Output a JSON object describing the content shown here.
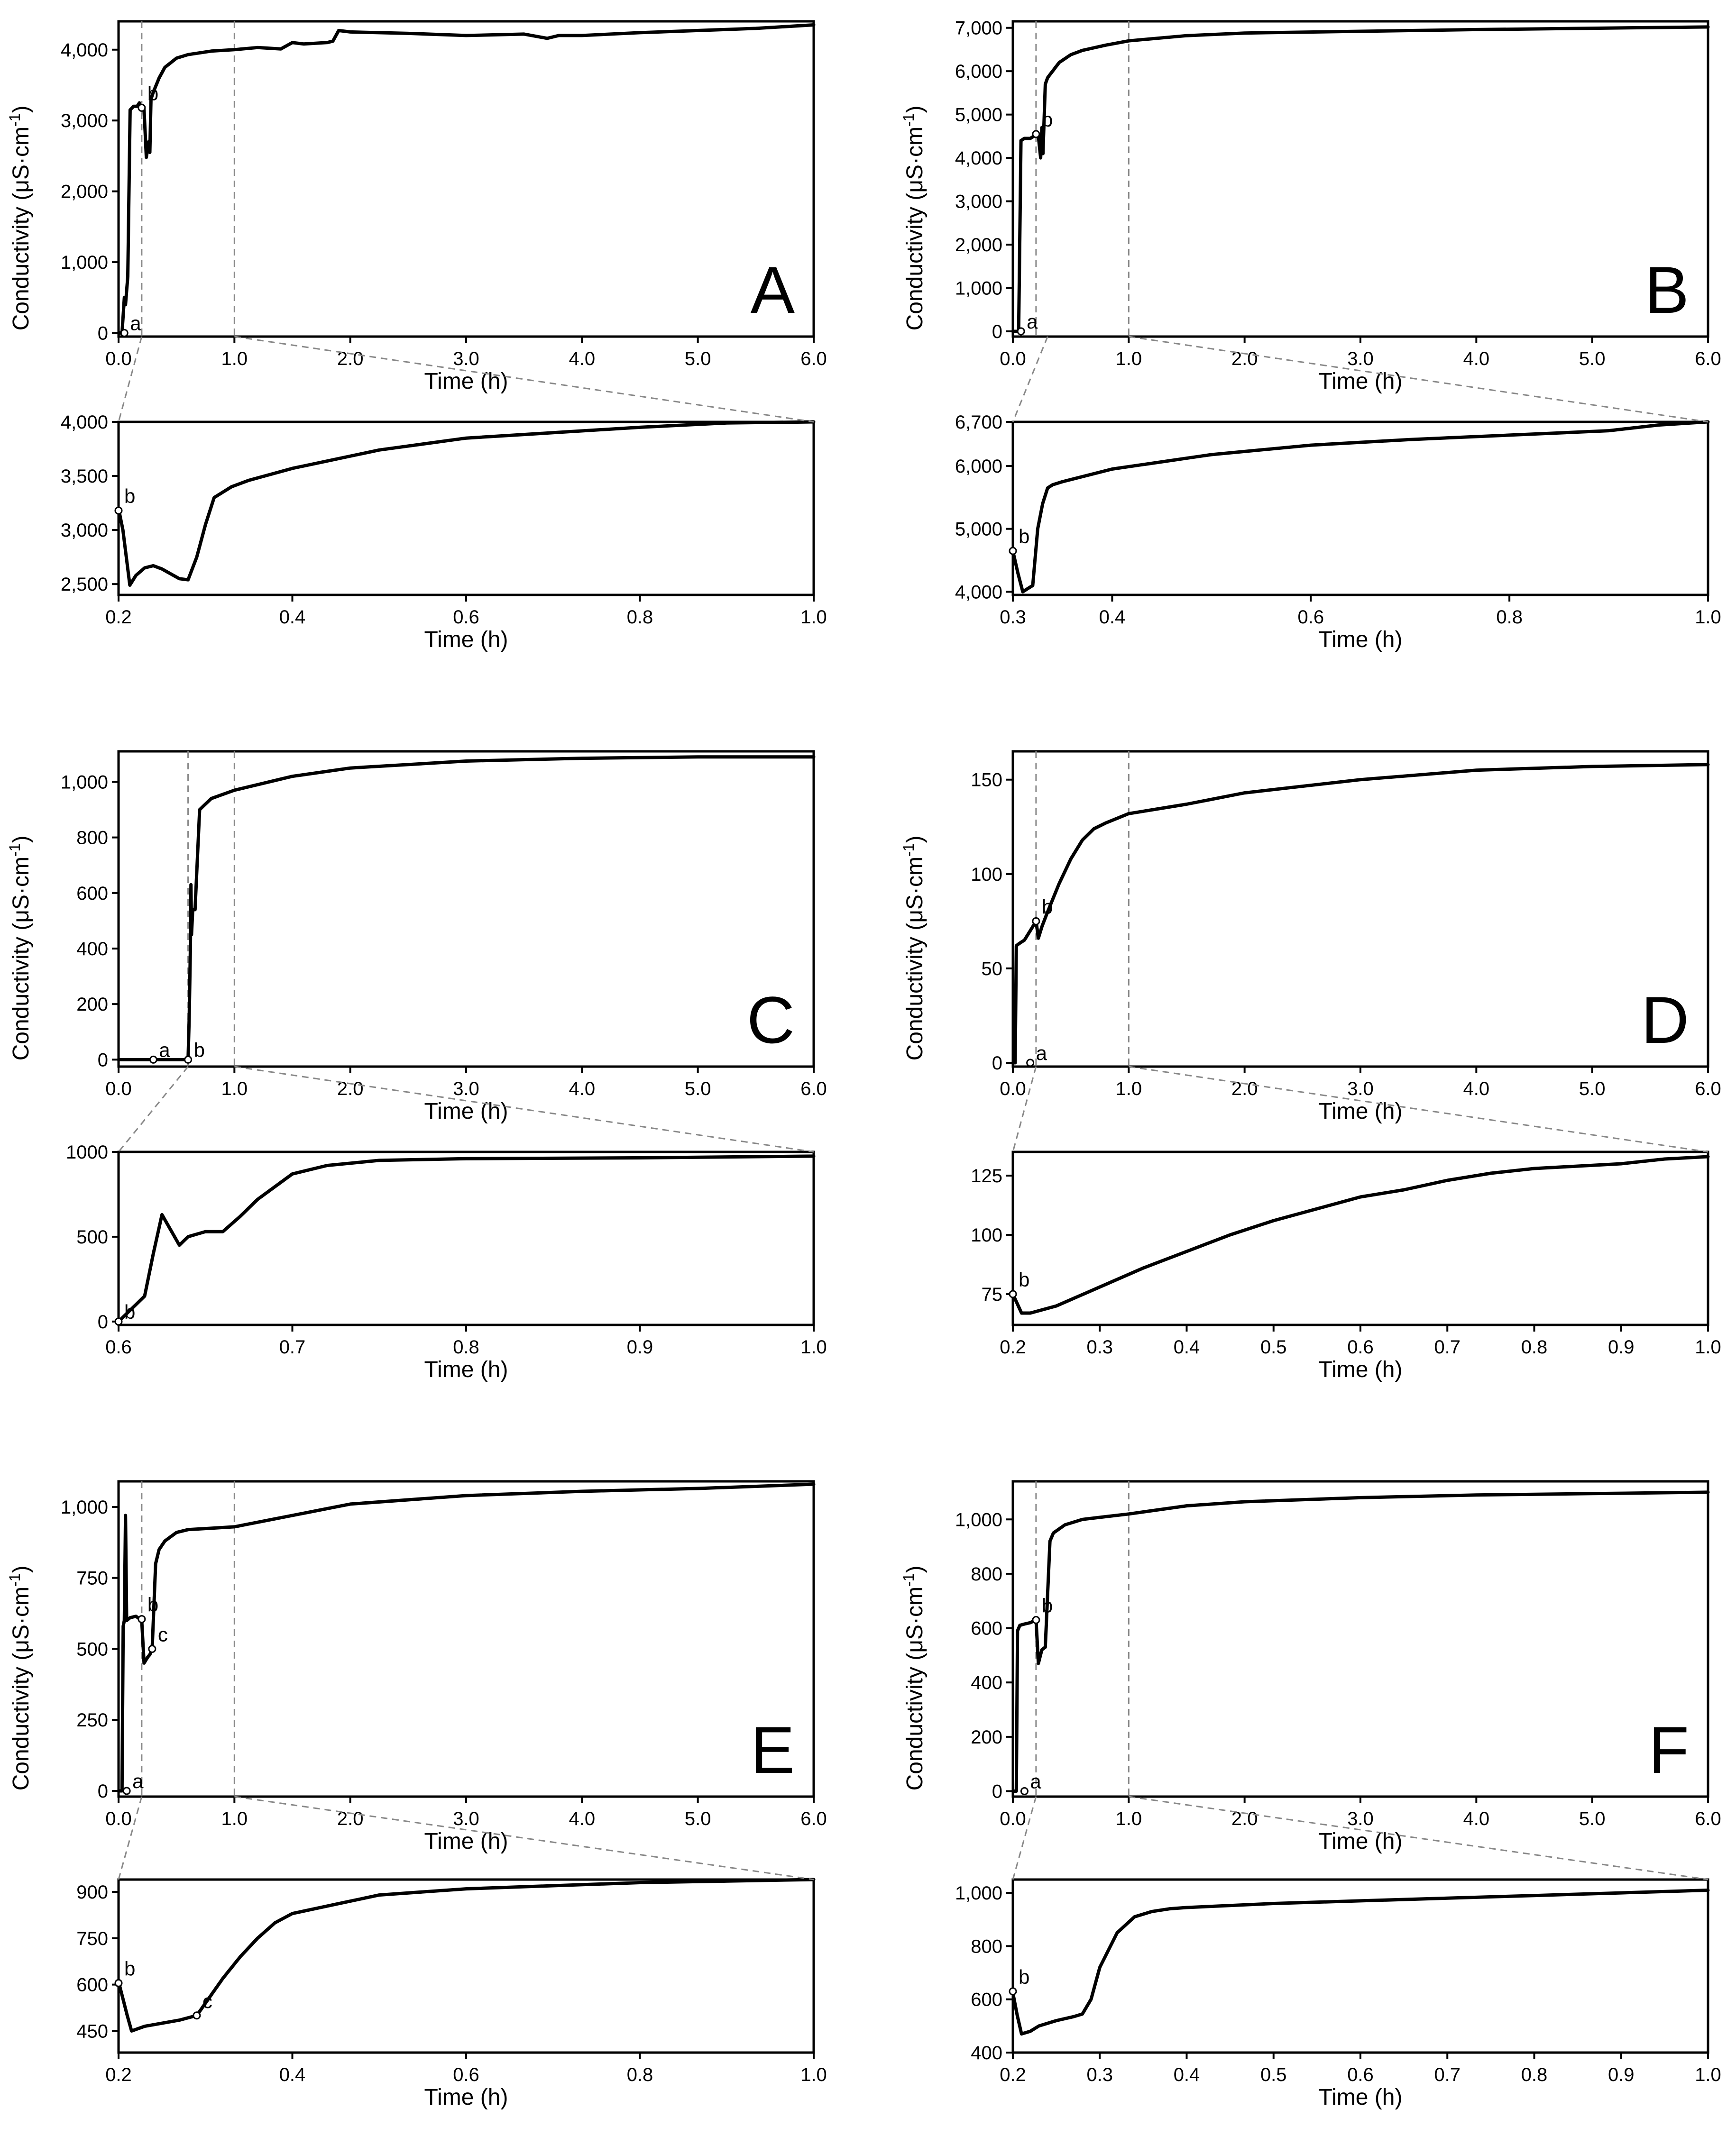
{
  "figure": {
    "y_axis_title": "Conductivity (μS·cm",
    "y_axis_title_sup": "-1",
    "y_axis_title_close": ")"
  },
  "chart_data": [
    {
      "id": "A-main",
      "type": "line",
      "panel": "A",
      "xlabel": "Time (h)",
      "xlim": [
        0,
        6
      ],
      "ylim": [
        -50,
        4400
      ],
      "xticks": [
        0,
        1,
        2,
        3,
        4,
        5,
        6
      ],
      "xtick_labels": [
        "0.0",
        "1.0",
        "2.0",
        "3.0",
        "4.0",
        "5.0",
        "6.0"
      ],
      "yticks": [
        0,
        1000,
        2000,
        3000,
        4000
      ],
      "ytick_labels": [
        "0",
        "1,000",
        "2,000",
        "3,000",
        "4,000"
      ],
      "vlines": [
        0.2,
        1.0
      ],
      "x": [
        0.0,
        0.03,
        0.05,
        0.06,
        0.08,
        0.1,
        0.13,
        0.16,
        0.18,
        0.19,
        0.2,
        0.21,
        0.22,
        0.24,
        0.26,
        0.27,
        0.28,
        0.3,
        0.35,
        0.4,
        0.5,
        0.6,
        0.8,
        1.0,
        1.2,
        1.4,
        1.5,
        1.6,
        1.8,
        1.85,
        1.9,
        2.0,
        2.5,
        3.0,
        3.5,
        3.7,
        3.8,
        4.0,
        4.5,
        5.0,
        5.5,
        6.0
      ],
      "y": [
        0,
        0,
        500,
        400,
        800,
        3150,
        3200,
        3200,
        3250,
        3150,
        3200,
        3180,
        3150,
        2480,
        2700,
        2550,
        3300,
        3400,
        3600,
        3750,
        3880,
        3930,
        3980,
        4000,
        4030,
        4010,
        4100,
        4080,
        4100,
        4120,
        4270,
        4250,
        4230,
        4200,
        4220,
        4160,
        4200,
        4200,
        4240,
        4270,
        4300,
        4350
      ],
      "points": [
        {
          "label": "a",
          "x": 0.05,
          "y": 0
        },
        {
          "label": "b",
          "x": 0.2,
          "y": 3180
        }
      ]
    },
    {
      "id": "A-zoom",
      "type": "line",
      "panel": "A",
      "xlabel": "Time (h)",
      "xlim": [
        0.2,
        1.0
      ],
      "ylim": [
        2400,
        4000
      ],
      "xticks": [
        0.2,
        0.4,
        0.6,
        0.8,
        1.0
      ],
      "xtick_labels": [
        "0.2",
        "0.4",
        "0.6",
        "0.8",
        "1.0"
      ],
      "yticks": [
        2500,
        3000,
        3500,
        4000
      ],
      "ytick_labels": [
        "2,500",
        "3,000",
        "3,500",
        "4,000"
      ],
      "x": [
        0.2,
        0.205,
        0.213,
        0.22,
        0.23,
        0.24,
        0.25,
        0.27,
        0.28,
        0.29,
        0.3,
        0.31,
        0.33,
        0.35,
        0.4,
        0.5,
        0.6,
        0.7,
        0.8,
        0.9,
        1.0
      ],
      "y": [
        3200,
        3000,
        2490,
        2580,
        2650,
        2670,
        2640,
        2550,
        2540,
        2750,
        3050,
        3300,
        3400,
        3460,
        3570,
        3740,
        3850,
        3900,
        3950,
        3990,
        4000
      ],
      "points": [
        {
          "label": "b",
          "x": 0.2,
          "y": 3180
        }
      ]
    },
    {
      "id": "B-main",
      "type": "line",
      "panel": "B",
      "xlabel": "Time (h)",
      "xlim": [
        0,
        6
      ],
      "ylim": [
        -120,
        7150
      ],
      "xticks": [
        0,
        1,
        2,
        3,
        4,
        5,
        6
      ],
      "xtick_labels": [
        "0.0",
        "1.0",
        "2.0",
        "3.0",
        "4.0",
        "5.0",
        "6.0"
      ],
      "yticks": [
        0,
        1000,
        2000,
        3000,
        4000,
        5000,
        6000,
        7000
      ],
      "ytick_labels": [
        "0",
        "1,000",
        "2,000",
        "3,000",
        "4,000",
        "5,000",
        "6,000",
        "7,000"
      ],
      "vlines": [
        0.2,
        1.0
      ],
      "x": [
        0.0,
        0.05,
        0.06,
        0.07,
        0.1,
        0.15,
        0.18,
        0.2,
        0.22,
        0.24,
        0.25,
        0.26,
        0.28,
        0.3,
        0.4,
        0.5,
        0.6,
        0.8,
        1.0,
        1.5,
        2.0,
        3.0,
        4.0,
        5.0,
        6.0
      ],
      "y": [
        0,
        0,
        2200,
        4400,
        4450,
        4450,
        4500,
        4550,
        4500,
        4000,
        4700,
        4100,
        5700,
        5850,
        6200,
        6380,
        6480,
        6600,
        6700,
        6820,
        6880,
        6920,
        6960,
        6990,
        7020
      ],
      "points": [
        {
          "label": "a",
          "x": 0.07,
          "y": 0
        },
        {
          "label": "b",
          "x": 0.2,
          "y": 4550
        }
      ]
    },
    {
      "id": "B-zoom",
      "type": "line",
      "panel": "B",
      "xlabel": "Time (h)",
      "xlim": [
        0.3,
        1.0
      ],
      "ylim": [
        3950,
        6700
      ],
      "xticks": [
        0.3,
        0.4,
        0.6,
        0.8,
        1.0
      ],
      "xtick_labels": [
        "0.3",
        "0.4",
        "0.6",
        "0.8",
        "1.0"
      ],
      "yticks": [
        4000,
        5000,
        6000,
        6700
      ],
      "ytick_labels": [
        "4,000",
        "5,000",
        "6,000",
        "6,700"
      ],
      "x": [
        0.3,
        0.305,
        0.31,
        0.315,
        0.32,
        0.325,
        0.33,
        0.335,
        0.34,
        0.35,
        0.4,
        0.5,
        0.6,
        0.7,
        0.8,
        0.9,
        0.95,
        1.0
      ],
      "y": [
        4650,
        4300,
        4000,
        4050,
        4100,
        5000,
        5400,
        5650,
        5700,
        5750,
        5950,
        6180,
        6330,
        6420,
        6490,
        6560,
        6650,
        6700
      ],
      "points": [
        {
          "label": "b",
          "x": 0.3,
          "y": 4650
        }
      ]
    },
    {
      "id": "C-main",
      "type": "line",
      "panel": "C",
      "xlabel": "Time (h)",
      "xlim": [
        0,
        6
      ],
      "ylim": [
        -25,
        1110
      ],
      "xticks": [
        0,
        1,
        2,
        3,
        4,
        5,
        6
      ],
      "xtick_labels": [
        "0.0",
        "1.0",
        "2.0",
        "3.0",
        "4.0",
        "5.0",
        "6.0"
      ],
      "yticks": [
        0,
        200,
        400,
        600,
        800,
        1000
      ],
      "ytick_labels": [
        "0",
        "200",
        "400",
        "600",
        "800",
        "1,000"
      ],
      "vlines": [
        0.6,
        1.0
      ],
      "x": [
        0.0,
        0.3,
        0.55,
        0.6,
        0.61,
        0.62,
        0.625,
        0.63,
        0.64,
        0.66,
        0.7,
        0.8,
        1.0,
        1.5,
        2.0,
        3.0,
        4.0,
        5.0,
        6.0
      ],
      "y": [
        0,
        0,
        0,
        0,
        150,
        400,
        630,
        450,
        540,
        540,
        900,
        940,
        970,
        1020,
        1050,
        1075,
        1085,
        1090,
        1090
      ],
      "points": [
        {
          "label": "a",
          "x": 0.3,
          "y": 0
        },
        {
          "label": "b",
          "x": 0.6,
          "y": 0
        }
      ]
    },
    {
      "id": "C-zoom",
      "type": "line",
      "panel": "C",
      "xlabel": "Time (h)",
      "xlim": [
        0.6,
        1.0
      ],
      "ylim": [
        -20,
        1000
      ],
      "xticks": [
        0.6,
        0.7,
        0.8,
        0.9,
        1.0
      ],
      "xtick_labels": [
        "0.6",
        "0.7",
        "0.8",
        "0.9",
        "1.0"
      ],
      "yticks": [
        0,
        500,
        1000
      ],
      "ytick_labels": [
        "0",
        "500",
        "1000"
      ],
      "x": [
        0.6,
        0.61,
        0.615,
        0.62,
        0.625,
        0.63,
        0.635,
        0.64,
        0.65,
        0.66,
        0.67,
        0.68,
        0.7,
        0.72,
        0.75,
        0.8,
        0.9,
        1.0
      ],
      "y": [
        0,
        100,
        150,
        400,
        630,
        540,
        450,
        500,
        530,
        530,
        620,
        720,
        870,
        920,
        950,
        960,
        965,
        975
      ],
      "points": [
        {
          "label": "b",
          "x": 0.6,
          "y": 0
        }
      ]
    },
    {
      "id": "D-main",
      "type": "line",
      "panel": "D",
      "xlabel": "Time (h)",
      "xlim": [
        0,
        6
      ],
      "ylim": [
        -2,
        165
      ],
      "xticks": [
        0,
        1,
        2,
        3,
        4,
        5,
        6
      ],
      "xtick_labels": [
        "0.0",
        "1.0",
        "2.0",
        "3.0",
        "4.0",
        "5.0",
        "6.0"
      ],
      "yticks": [
        0,
        50,
        100,
        150
      ],
      "ytick_labels": [
        "0",
        "50",
        "100",
        "150"
      ],
      "vlines": [
        0.2,
        1.0
      ],
      "x": [
        0.0,
        0.02,
        0.03,
        0.05,
        0.1,
        0.15,
        0.2,
        0.22,
        0.25,
        0.3,
        0.4,
        0.5,
        0.6,
        0.7,
        0.8,
        1.0,
        1.5,
        2.0,
        3.0,
        4.0,
        5.0,
        6.0
      ],
      "y": [
        0,
        0,
        62,
        63,
        65,
        70,
        75,
        66,
        72,
        80,
        95,
        108,
        118,
        124,
        127,
        132,
        137,
        143,
        150,
        155,
        157,
        158
      ],
      "points": [
        {
          "label": "a",
          "x": 0.15,
          "y": 0
        },
        {
          "label": "b",
          "x": 0.2,
          "y": 75
        }
      ]
    },
    {
      "id": "D-zoom",
      "type": "line",
      "panel": "D",
      "xlabel": "Time (h)",
      "xlim": [
        0.2,
        1.0
      ],
      "ylim": [
        62,
        135
      ],
      "xticks": [
        0.2,
        0.3,
        0.4,
        0.5,
        0.6,
        0.7,
        0.8,
        0.9,
        1.0
      ],
      "xtick_labels": [
        "0.2",
        "0.3",
        "0.4",
        "0.5",
        "0.6",
        "0.7",
        "0.8",
        "0.9",
        "1.0"
      ],
      "yticks": [
        75,
        100,
        125
      ],
      "ytick_labels": [
        "75",
        "100",
        "125"
      ],
      "x": [
        0.2,
        0.205,
        0.21,
        0.22,
        0.23,
        0.25,
        0.3,
        0.35,
        0.4,
        0.45,
        0.5,
        0.55,
        0.6,
        0.65,
        0.7,
        0.75,
        0.8,
        0.85,
        0.9,
        0.95,
        1.0
      ],
      "y": [
        75,
        71,
        67,
        67,
        68,
        70,
        78,
        86,
        93,
        100,
        106,
        111,
        116,
        119,
        123,
        126,
        128,
        129,
        130,
        132,
        133
      ],
      "points": [
        {
          "label": "b",
          "x": 0.2,
          "y": 75
        }
      ]
    },
    {
      "id": "E-main",
      "type": "line",
      "panel": "E",
      "xlabel": "Time (h)",
      "xlim": [
        0,
        6
      ],
      "ylim": [
        -20,
        1090
      ],
      "xticks": [
        0,
        1,
        2,
        3,
        4,
        5,
        6
      ],
      "xtick_labels": [
        "0.0",
        "1.0",
        "2.0",
        "3.0",
        "4.0",
        "5.0",
        "6.0"
      ],
      "yticks": [
        0,
        250,
        500,
        750,
        1000
      ],
      "ytick_labels": [
        "0",
        "250",
        "500",
        "750",
        "1,000"
      ],
      "vlines": [
        0.2,
        1.0
      ],
      "x": [
        0.0,
        0.03,
        0.04,
        0.05,
        0.06,
        0.07,
        0.1,
        0.15,
        0.2,
        0.22,
        0.25,
        0.27,
        0.29,
        0.32,
        0.35,
        0.4,
        0.5,
        0.6,
        0.8,
        1.0,
        1.5,
        2.0,
        3.0,
        4.0,
        5.0,
        6.0
      ],
      "y": [
        0,
        0,
        580,
        600,
        970,
        600,
        610,
        615,
        600,
        450,
        470,
        480,
        500,
        800,
        850,
        880,
        910,
        920,
        925,
        930,
        970,
        1010,
        1040,
        1055,
        1065,
        1080
      ],
      "points": [
        {
          "label": "a",
          "x": 0.07,
          "y": 0
        },
        {
          "label": "b",
          "x": 0.2,
          "y": 605
        },
        {
          "label": "c",
          "x": 0.29,
          "y": 500
        }
      ]
    },
    {
      "id": "E-zoom",
      "type": "line",
      "panel": "E",
      "xlabel": "Time (h)",
      "xlim": [
        0.2,
        1.0
      ],
      "ylim": [
        380,
        940
      ],
      "xticks": [
        0.2,
        0.4,
        0.6,
        0.8,
        1.0
      ],
      "xtick_labels": [
        "0.2",
        "0.4",
        "0.6",
        "0.8",
        "1.0"
      ],
      "yticks": [
        450,
        600,
        750,
        900
      ],
      "ytick_labels": [
        "450",
        "600",
        "750",
        "900"
      ],
      "x": [
        0.2,
        0.21,
        0.215,
        0.23,
        0.25,
        0.27,
        0.29,
        0.3,
        0.32,
        0.34,
        0.36,
        0.38,
        0.4,
        0.45,
        0.5,
        0.6,
        0.7,
        0.8,
        0.9,
        1.0
      ],
      "y": [
        610,
        500,
        450,
        465,
        475,
        485,
        500,
        540,
        620,
        690,
        750,
        800,
        830,
        860,
        890,
        910,
        920,
        930,
        935,
        940
      ],
      "points": [
        {
          "label": "b",
          "x": 0.2,
          "y": 605
        },
        {
          "label": "c",
          "x": 0.29,
          "y": 500
        }
      ]
    },
    {
      "id": "F-main",
      "type": "line",
      "panel": "F",
      "xlabel": "Time (h)",
      "xlim": [
        0,
        6
      ],
      "ylim": [
        -20,
        1140
      ],
      "xticks": [
        0,
        1,
        2,
        3,
        4,
        5,
        6
      ],
      "xtick_labels": [
        "0.0",
        "1.0",
        "2.0",
        "3.0",
        "4.0",
        "5.0",
        "6.0"
      ],
      "yticks": [
        0,
        200,
        400,
        600,
        800,
        1000
      ],
      "ytick_labels": [
        "0",
        "200",
        "400",
        "600",
        "800",
        "1,000"
      ],
      "vlines": [
        0.2,
        1.0
      ],
      "x": [
        0.0,
        0.03,
        0.04,
        0.06,
        0.1,
        0.15,
        0.2,
        0.22,
        0.25,
        0.28,
        0.32,
        0.35,
        0.45,
        0.6,
        0.8,
        1.0,
        1.5,
        2.0,
        3.0,
        4.0,
        5.0,
        6.0
      ],
      "y": [
        0,
        0,
        590,
        610,
        615,
        620,
        630,
        470,
        520,
        530,
        920,
        950,
        980,
        1000,
        1010,
        1020,
        1050,
        1065,
        1080,
        1090,
        1095,
        1100
      ],
      "points": [
        {
          "label": "a",
          "x": 0.1,
          "y": 0
        },
        {
          "label": "b",
          "x": 0.2,
          "y": 630
        }
      ]
    },
    {
      "id": "F-zoom",
      "type": "line",
      "panel": "F",
      "xlabel": "Time (h)",
      "xlim": [
        0.2,
        1.0
      ],
      "ylim": [
        400,
        1050
      ],
      "xticks": [
        0.2,
        0.3,
        0.4,
        0.5,
        0.6,
        0.7,
        0.8,
        0.9,
        1.0
      ],
      "xtick_labels": [
        "0.2",
        "0.3",
        "0.4",
        "0.5",
        "0.6",
        "0.7",
        "0.8",
        "0.9",
        "1.0"
      ],
      "yticks": [
        400,
        600,
        800,
        1000
      ],
      "ytick_labels": [
        "400",
        "600",
        "800",
        "1,000"
      ],
      "x": [
        0.2,
        0.205,
        0.21,
        0.215,
        0.22,
        0.23,
        0.25,
        0.27,
        0.28,
        0.29,
        0.3,
        0.32,
        0.34,
        0.36,
        0.38,
        0.4,
        0.5,
        0.6,
        0.7,
        0.8,
        0.9,
        1.0
      ],
      "y": [
        625,
        540,
        470,
        475,
        480,
        500,
        520,
        535,
        545,
        600,
        720,
        850,
        910,
        930,
        940,
        945,
        960,
        970,
        980,
        990,
        1000,
        1010
      ],
      "points": [
        {
          "label": "b",
          "x": 0.2,
          "y": 630
        }
      ]
    }
  ]
}
